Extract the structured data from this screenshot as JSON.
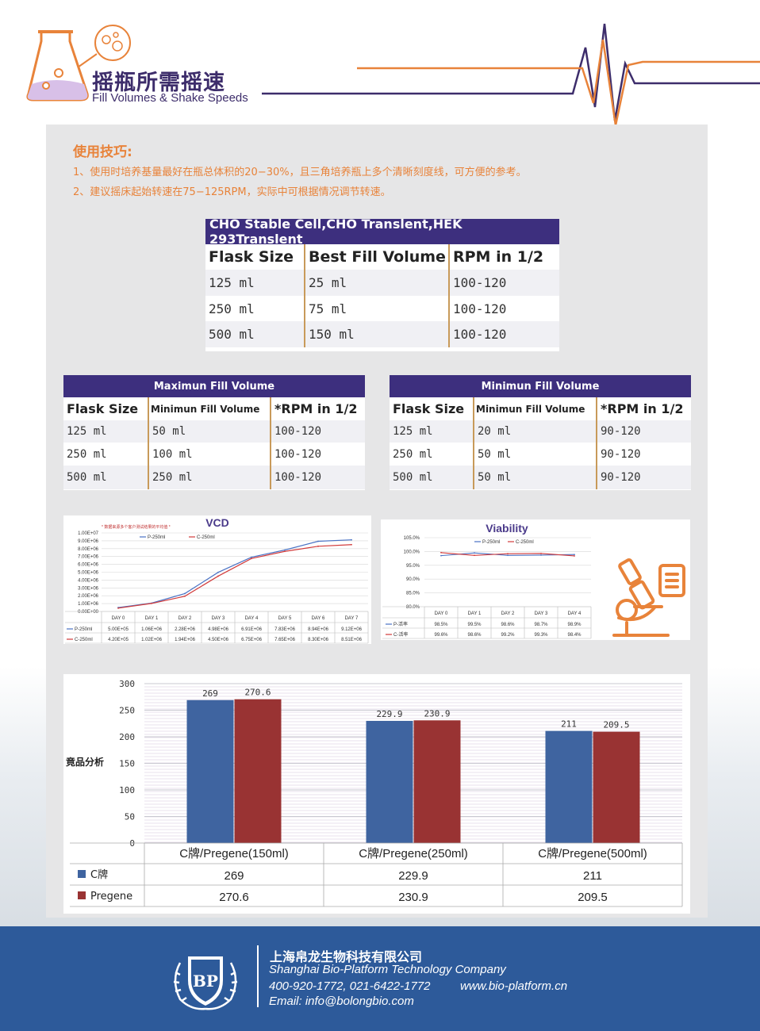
{
  "header": {
    "title_cn": "摇瓶所需摇速",
    "title_en": "Fill Volumes & Shake Speeds"
  },
  "tips": {
    "heading": "使用技巧:",
    "items": [
      "1、使用时培养基量最好在瓶总体积的20−30%，且三角培养瓶上多个清晰刻度线，可方便的参考。",
      "2、建议摇床起始转速在75−125RPM，实际中可根据情况调节转速。"
    ]
  },
  "table_main": {
    "title": "CHO Stable Cell,CHO Translent,HEK 293Translent",
    "headers": [
      "Flask Size",
      "Best Fill Volume",
      "RPM in 1/2"
    ],
    "rows": [
      [
        "125 ml",
        "25 ml",
        "100-120"
      ],
      [
        "250 ml",
        "75 ml",
        "100-120"
      ],
      [
        "500 ml",
        "150 ml",
        "100-120"
      ]
    ]
  },
  "table_max": {
    "title": "Maximun Fill Volume",
    "headers": [
      "Flask Size",
      "Minimun Fill Volume",
      "*RPM in 1/2"
    ],
    "rows": [
      [
        "125 ml",
        "50 ml",
        "100-120"
      ],
      [
        "250 ml",
        "100 ml",
        "100-120"
      ],
      [
        "500 ml",
        "250 ml",
        "100-120"
      ]
    ]
  },
  "table_min": {
    "title": "Minimun Fill Volume",
    "headers": [
      "Flask Size",
      "Minimun Fill Volume",
      "*RPM in 1/2"
    ],
    "rows": [
      [
        "125 ml",
        "20 ml",
        "90-120"
      ],
      [
        "250 ml",
        "50 ml",
        "90-120"
      ],
      [
        "500 ml",
        "50 ml",
        "90-120"
      ]
    ]
  },
  "vcd": {
    "title": "VCD",
    "note": "* 数据来源多个客户测试结果的平均值 *",
    "yticks": [
      "1.00E+07",
      "9.00E+06",
      "8.00E+06",
      "7.00E+06",
      "6.00E+06",
      "5.00E+06",
      "4.00E+06",
      "3.00E+06",
      "2.00E+06",
      "1.00E+06",
      "0.00E+00"
    ],
    "days": [
      "DAY 0",
      "DAY 1",
      "DAY 2",
      "DAY 3",
      "DAY 4",
      "DAY 5",
      "DAY 6",
      "DAY 7"
    ],
    "series": [
      {
        "name": "P-250ml",
        "color": "#4a72c4",
        "labels": [
          "5.00E+05",
          "1.06E+06",
          "2.28E+06",
          "4.98E+06",
          "6.91E+06",
          "7.83E+06",
          "8.94E+06",
          "9.12E+06"
        ],
        "values": [
          500000,
          1060000,
          2280000,
          4980000,
          6910000,
          7830000,
          8940000,
          9120000
        ]
      },
      {
        "name": "C-250ml",
        "color": "#d23a3a",
        "labels": [
          "4.20E+05",
          "1.02E+06",
          "1.94E+06",
          "4.50E+06",
          "6.75E+06",
          "7.65E+06",
          "8.30E+06",
          "8.51E+06"
        ],
        "values": [
          420000,
          1020000,
          1940000,
          4500000,
          6750000,
          7650000,
          8300000,
          8510000
        ]
      }
    ]
  },
  "viability": {
    "title": "Viability",
    "yticks": [
      "105.0%",
      "100.0%",
      "95.0%",
      "90.0%",
      "85.0%",
      "80.0%"
    ],
    "days": [
      "DAY 0",
      "DAY 1",
      "DAY 2",
      "DAY 3",
      "DAY 4"
    ],
    "series": [
      {
        "name": "P-250ml",
        "table_name": "P-活率",
        "color": "#4a72c4",
        "labels": [
          "98.5%",
          "99.5%",
          "98.6%",
          "98.7%",
          "98.9%"
        ],
        "values": [
          98.5,
          99.5,
          98.6,
          98.7,
          98.9
        ]
      },
      {
        "name": "C-250ml",
        "table_name": "C-活率",
        "color": "#d23a3a",
        "labels": [
          "99.6%",
          "98.6%",
          "99.2%",
          "99.3%",
          "98.4%"
        ],
        "values": [
          99.6,
          98.6,
          99.2,
          99.3,
          98.4
        ]
      }
    ]
  },
  "chart_data": {
    "type": "bar",
    "ylabel": "竟品分析",
    "ylim": [
      0,
      300
    ],
    "yticks": [
      "300",
      "250",
      "200",
      "150",
      "100",
      "50",
      "0"
    ],
    "categories": [
      "C牌/Pregene(150ml)",
      "C牌/Pregene(250ml)",
      "C牌/Pregene(500ml)"
    ],
    "series": [
      {
        "name": "C牌",
        "color": "#3f64a0",
        "values": [
          269,
          229.9,
          211
        ],
        "labels": [
          "269",
          "229.9",
          "211"
        ]
      },
      {
        "name": "Pregene",
        "color": "#993333",
        "values": [
          270.6,
          230.9,
          209.5
        ],
        "labels": [
          "270.6",
          "230.9",
          "209.5"
        ]
      }
    ]
  },
  "footer": {
    "company_cn": "上海帛龙生物科技有限公司",
    "company_en": "Shanghai Bio-Platform Technology Company",
    "phones": "400-920-1772, 021-6422-1772",
    "website": "www.bio-platform.cn",
    "email": "Email: info@bolongbio.com",
    "logo_text": "BP"
  }
}
